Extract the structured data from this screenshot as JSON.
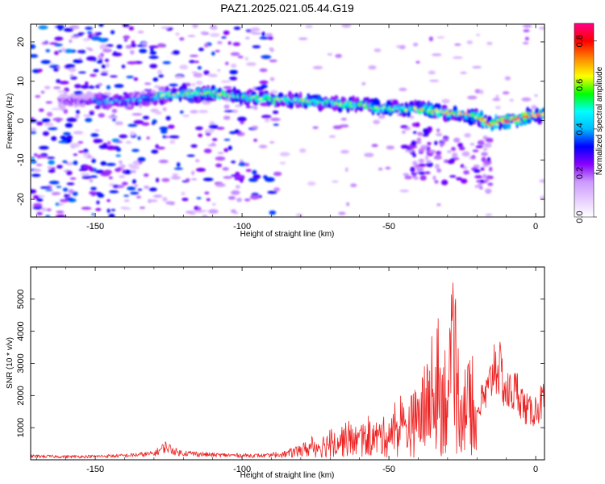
{
  "chart_data": [
    {
      "type": "heatmap",
      "title": "PAZ1.2025.021.05.44.G19",
      "xlabel": "Height of straight line (km)",
      "ylabel": "Frequency (Hz)",
      "xlim": [
        -172,
        3
      ],
      "ylim": [
        -24.5,
        24.5
      ],
      "xticks": [
        -150,
        -100,
        -50,
        0
      ],
      "yticks": [
        -20,
        -10,
        0,
        10,
        20
      ],
      "colorbar": {
        "label": "Normalized spectral amplitude",
        "range": [
          0.0,
          0.88
        ],
        "ticks": [
          "0.0",
          "0.2",
          "0.4",
          "0.6",
          "0.8"
        ],
        "colors": [
          "#ffffff",
          "#e6ccff",
          "#cc99ff",
          "#8800ff",
          "#0000ff",
          "#00bbff",
          "#00ffff",
          "#00ff00",
          "#ffff00",
          "#ff8800",
          "#ff0000",
          "#ff0088"
        ]
      },
      "ridge": {
        "x": [
          -160,
          -150,
          -140,
          -130,
          -120,
          -110,
          -100,
          -90,
          -80,
          -70,
          -60,
          -50,
          -40,
          -30,
          -20,
          -15,
          -10,
          -5,
          0,
          3
        ],
        "y": [
          5,
          5,
          5,
          6,
          7,
          7,
          6,
          5.5,
          5,
          4.5,
          4,
          3,
          3,
          2,
          1,
          -1,
          0,
          0.5,
          1.5,
          1.5
        ]
      }
    },
    {
      "type": "line",
      "xlabel": "Height of straight line (km)",
      "ylabel": "SNR (10 * v/v)",
      "xlim": [
        -172,
        3
      ],
      "ylim": [
        0,
        6000
      ],
      "xticks": [
        -150,
        -100,
        -50,
        0
      ],
      "yticks": [
        1000,
        2000,
        3000,
        4000,
        5000
      ],
      "color": "#ee2222",
      "envelope": {
        "x": [
          -172,
          -160,
          -150,
          -140,
          -130,
          -126,
          -122,
          -110,
          -100,
          -90,
          -85,
          -80,
          -75,
          -70,
          -65,
          -60,
          -55,
          -50,
          -45,
          -40,
          -35,
          -30,
          -28,
          -25,
          -22,
          -20,
          -16,
          -14,
          -12,
          -10,
          -6,
          -4,
          -2,
          0,
          3
        ],
        "y": [
          150,
          130,
          140,
          170,
          250,
          550,
          300,
          200,
          180,
          170,
          230,
          450,
          650,
          850,
          1100,
          1000,
          1150,
          1350,
          1700,
          2300,
          3400,
          3800,
          4600,
          3100,
          2800,
          1900,
          2600,
          3700,
          3300,
          2500,
          2600,
          2000,
          1800,
          1900,
          2300
        ]
      }
    }
  ]
}
